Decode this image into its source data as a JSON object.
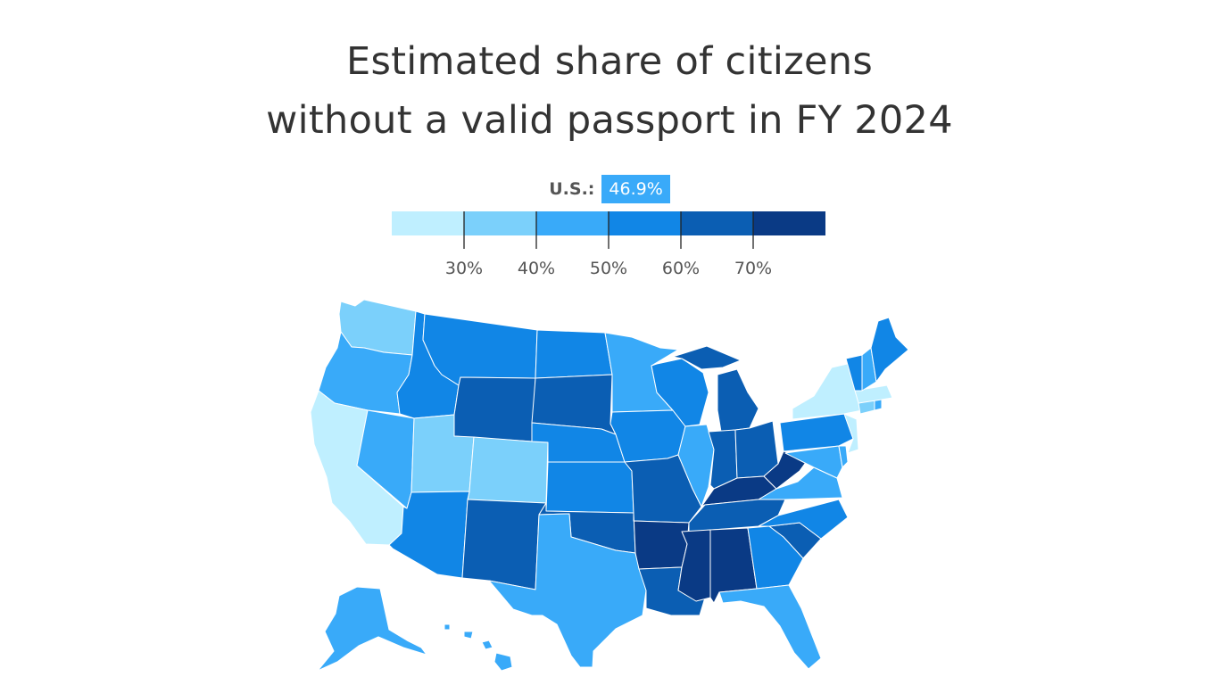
{
  "title": {
    "line1": "Estimated share of citizens",
    "line2": "without a valid passport in FY 2024"
  },
  "us_average": {
    "label": "U.S.:",
    "value": "46.9%"
  },
  "legend": {
    "colors": [
      "#bfefff",
      "#7bd0fb",
      "#39aaf9",
      "#1186e6",
      "#0b5eb3",
      "#0a3a85"
    ],
    "ticks": [
      "30%",
      "40%",
      "50%",
      "60%",
      "70%"
    ]
  },
  "map": {
    "states": [
      {
        "name": "Washington",
        "bin": 1
      },
      {
        "name": "Oregon",
        "bin": 2
      },
      {
        "name": "California",
        "bin": 0
      },
      {
        "name": "Nevada",
        "bin": 2
      },
      {
        "name": "Idaho",
        "bin": 3
      },
      {
        "name": "Montana",
        "bin": 3
      },
      {
        "name": "Wyoming",
        "bin": 4
      },
      {
        "name": "Utah",
        "bin": 1
      },
      {
        "name": "Colorado",
        "bin": 1
      },
      {
        "name": "Arizona",
        "bin": 3
      },
      {
        "name": "New Mexico",
        "bin": 4
      },
      {
        "name": "North Dakota",
        "bin": 3
      },
      {
        "name": "South Dakota",
        "bin": 4
      },
      {
        "name": "Nebraska",
        "bin": 3
      },
      {
        "name": "Kansas",
        "bin": 3
      },
      {
        "name": "Oklahoma",
        "bin": 4
      },
      {
        "name": "Texas",
        "bin": 2
      },
      {
        "name": "Minnesota",
        "bin": 2
      },
      {
        "name": "Iowa",
        "bin": 3
      },
      {
        "name": "Missouri",
        "bin": 4
      },
      {
        "name": "Arkansas",
        "bin": 5
      },
      {
        "name": "Louisiana",
        "bin": 4
      },
      {
        "name": "Wisconsin",
        "bin": 3
      },
      {
        "name": "Illinois",
        "bin": 2
      },
      {
        "name": "Michigan",
        "bin": 4
      },
      {
        "name": "Indiana",
        "bin": 4
      },
      {
        "name": "Ohio",
        "bin": 4
      },
      {
        "name": "Kentucky",
        "bin": 5
      },
      {
        "name": "Tennessee",
        "bin": 4
      },
      {
        "name": "Mississippi",
        "bin": 5
      },
      {
        "name": "Alabama",
        "bin": 5
      },
      {
        "name": "Georgia",
        "bin": 3
      },
      {
        "name": "Florida",
        "bin": 2
      },
      {
        "name": "South Carolina",
        "bin": 4
      },
      {
        "name": "North Carolina",
        "bin": 3
      },
      {
        "name": "Virginia",
        "bin": 2
      },
      {
        "name": "West Virginia",
        "bin": 5
      },
      {
        "name": "Pennsylvania",
        "bin": 3
      },
      {
        "name": "New York",
        "bin": 0
      },
      {
        "name": "New Jersey",
        "bin": 0
      },
      {
        "name": "Maryland",
        "bin": 2
      },
      {
        "name": "Delaware",
        "bin": 2
      },
      {
        "name": "Connecticut",
        "bin": 1
      },
      {
        "name": "Rhode Island",
        "bin": 2
      },
      {
        "name": "Massachusetts",
        "bin": 0
      },
      {
        "name": "Vermont",
        "bin": 3
      },
      {
        "name": "New Hampshire",
        "bin": 2
      },
      {
        "name": "Maine",
        "bin": 3
      },
      {
        "name": "Alaska",
        "bin": 2
      },
      {
        "name": "Hawaii",
        "bin": 2
      }
    ]
  }
}
